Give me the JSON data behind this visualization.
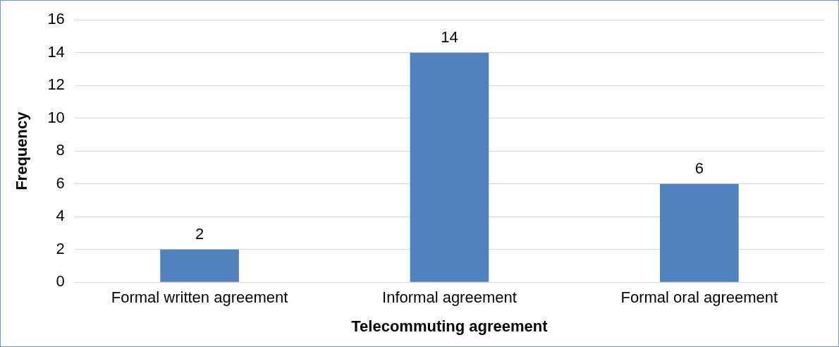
{
  "chart_data": {
    "type": "bar",
    "xlabel": "Telecommuting agreement",
    "ylabel": "Frequency",
    "categories": [
      "Formal written agreement",
      "Informal agreement",
      "Formal oral agreement"
    ],
    "values": [
      2,
      14,
      6
    ],
    "color": "#4f81bd",
    "ylim": [
      0,
      16
    ],
    "yticks": [
      0,
      2,
      4,
      6,
      8,
      10,
      12,
      14,
      16
    ],
    "grid": "y",
    "data_labels": true
  }
}
